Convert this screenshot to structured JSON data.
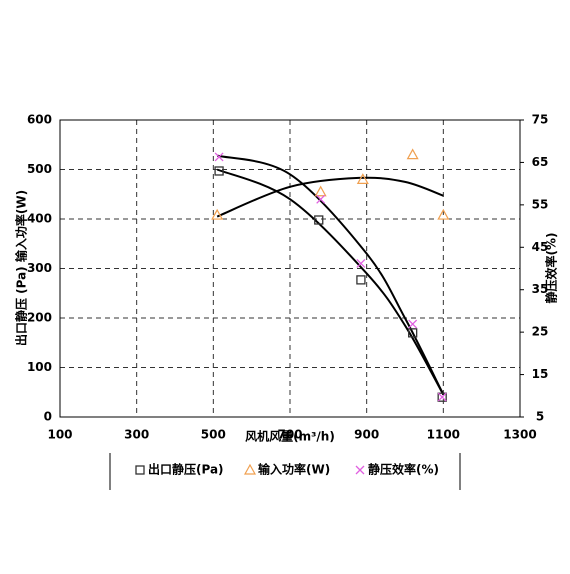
{
  "chart_data": {
    "type": "scatter",
    "xlabel": "风机风量(m³/h)",
    "ylabel": "出口静压 (Pa) 输入功率(W)",
    "y2label": "静压效率(%)",
    "xlim": [
      100,
      1300
    ],
    "xticks": [
      100,
      300,
      500,
      700,
      900,
      1100,
      1300
    ],
    "ylim": [
      0,
      600
    ],
    "yticks": [
      0,
      100,
      200,
      300,
      400,
      500,
      600
    ],
    "y2lim": [
      5,
      75
    ],
    "y2ticks": [
      5,
      15,
      25,
      35,
      45,
      55,
      65,
      75
    ],
    "grid": true,
    "series": [
      {
        "name": "出口静压(Pa)",
        "color": "#333333",
        "marker": "square",
        "x": [
          515,
          775,
          885,
          1020,
          1097
        ],
        "values": [
          497,
          398,
          277,
          170,
          40
        ],
        "trend": {
          "x": [
            510,
            700,
            900,
            1000,
            1100
          ],
          "values": [
            500,
            440,
            290,
            185,
            45
          ]
        }
      },
      {
        "name": "输入功率(W)",
        "color": "#f0a050",
        "marker": "triangle",
        "x": [
          510,
          780,
          890,
          1020,
          1100
        ],
        "values": [
          408,
          455,
          480,
          530,
          408
        ],
        "trend": {
          "x": [
            510,
            700,
            880,
            1000,
            1100
          ],
          "values": [
            405,
            465,
            483,
            475,
            447
          ]
        }
      },
      {
        "name": "静压效率(%)",
        "color": "#e060e0",
        "marker": "cross",
        "axis": "y2",
        "x": [
          515,
          780,
          885,
          1020,
          1097
        ],
        "values": [
          66.3,
          56.3,
          41.2,
          26.9,
          9.7
        ],
        "trend": {
          "x": [
            510,
            700,
            900,
            1000,
            1100
          ],
          "values": [
            66.6,
            62.2,
            43.5,
            28.3,
            10.3
          ]
        }
      }
    ]
  }
}
